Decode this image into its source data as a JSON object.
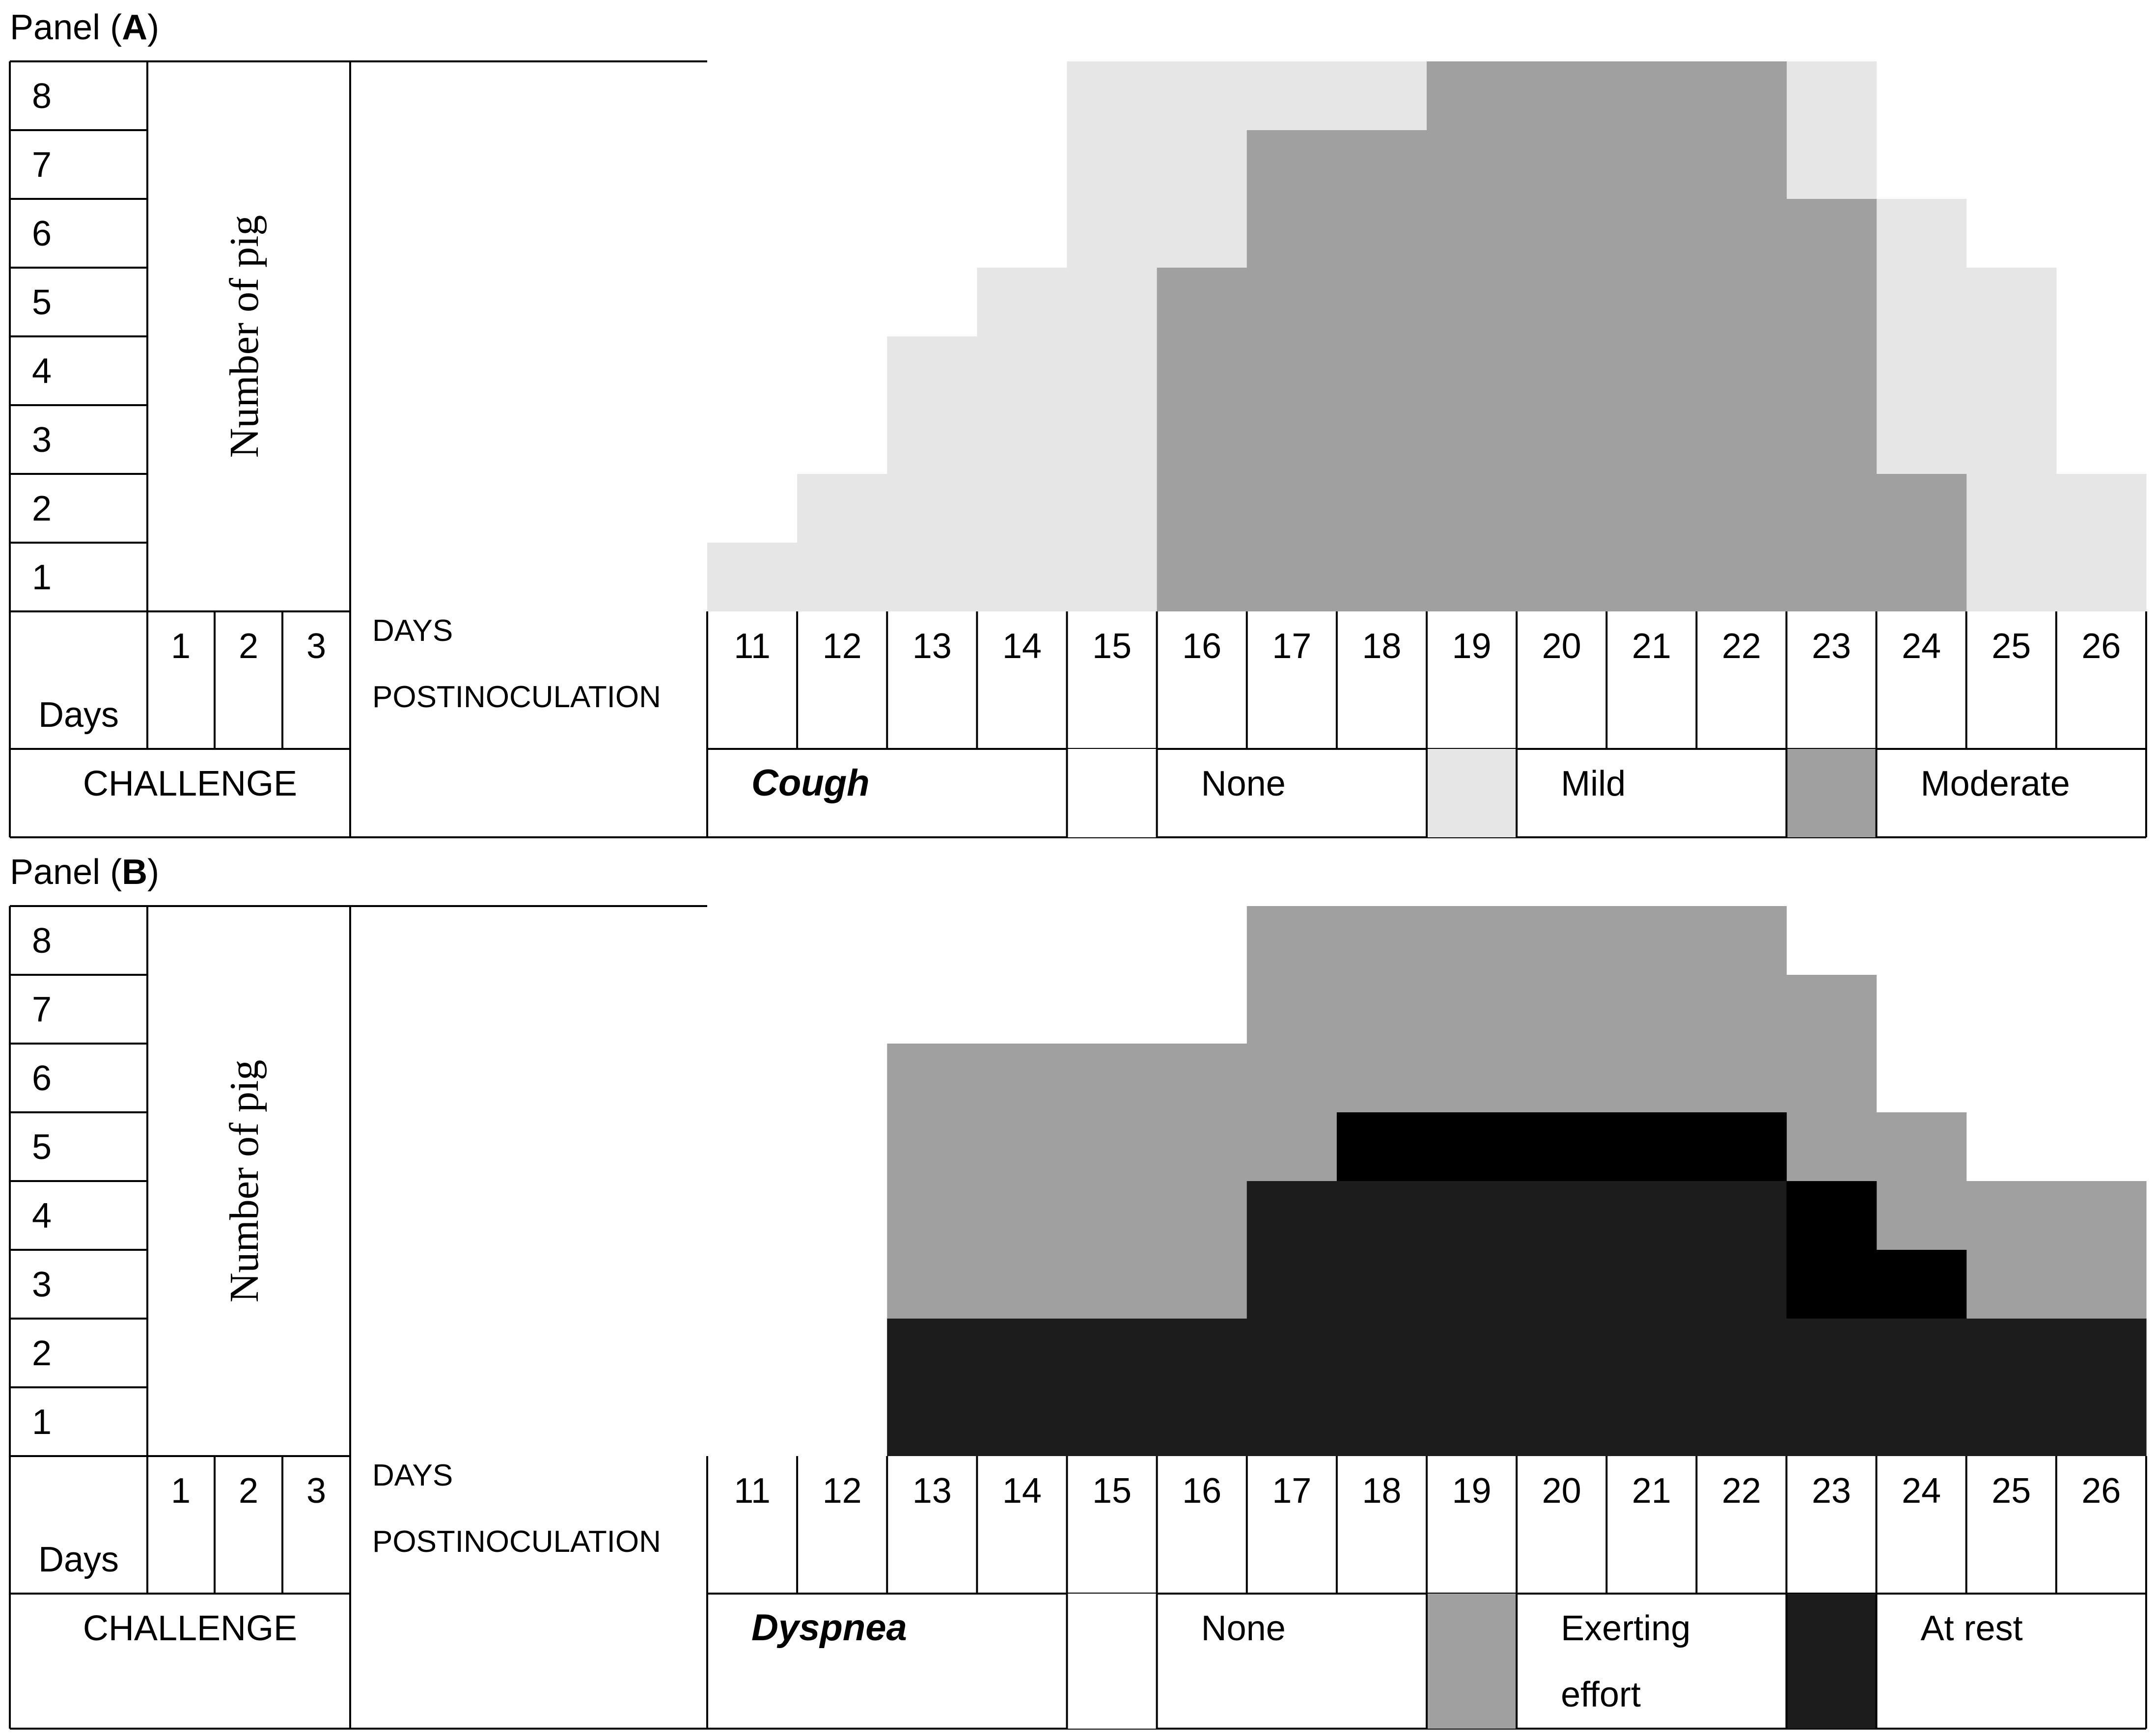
{
  "colors": {
    "none": "#ffffff",
    "mild": "#e6e6e6",
    "moderate": "#a0a0a0",
    "exerting_effort": "#a0a0a0",
    "at_rest": "#1c1c1c",
    "at_rest_overlay": "#000000"
  },
  "chart_data": [
    {
      "type": "heatmap",
      "panel_prefix": "Panel (",
      "panel_letter": "A",
      "panel_suffix": ")",
      "ylabel": "Number of pig",
      "y_ticks": [
        "8",
        "7",
        "6",
        "5",
        "4",
        "3",
        "2",
        "1"
      ],
      "days_label": "Days",
      "challenge_label": "CHALLENGE",
      "challenge_days": [
        "1",
        "2",
        "3"
      ],
      "xlabel_line1": "DAYS",
      "xlabel_line2": "POSTINOCULATION",
      "x_days": [
        "11",
        "12",
        "13",
        "14",
        "15",
        "16",
        "17",
        "18",
        "19",
        "20",
        "21",
        "22",
        "23",
        "24",
        "25",
        "26"
      ],
      "symptom": "Cough",
      "legend": [
        {
          "key": "none",
          "label": [
            "None"
          ]
        },
        {
          "key": "mild",
          "label": [
            "Mild"
          ]
        },
        {
          "key": "moderate",
          "label": [
            "Moderate"
          ]
        }
      ],
      "series": [
        {
          "key": "mild",
          "values": [
            1,
            2,
            4,
            5,
            8,
            8,
            8,
            8,
            8,
            8,
            8,
            8,
            8,
            6,
            5,
            2
          ]
        },
        {
          "key": "moderate",
          "values": [
            0,
            0,
            0,
            0,
            0,
            5,
            7,
            7,
            8,
            8,
            8,
            8,
            6,
            2,
            0,
            0
          ]
        }
      ]
    },
    {
      "type": "heatmap",
      "panel_prefix": "Panel (",
      "panel_letter": "B",
      "panel_suffix": ")",
      "ylabel": "Number of pig",
      "y_ticks": [
        "8",
        "7",
        "6",
        "5",
        "4",
        "3",
        "2",
        "1"
      ],
      "days_label": "Days",
      "challenge_label": "CHALLENGE",
      "challenge_days": [
        "1",
        "2",
        "3"
      ],
      "xlabel_line1": "DAYS",
      "xlabel_line2": "POSTINOCULATION",
      "x_days": [
        "11",
        "12",
        "13",
        "14",
        "15",
        "16",
        "17",
        "18",
        "19",
        "20",
        "21",
        "22",
        "23",
        "24",
        "25",
        "26"
      ],
      "symptom": "Dyspnea",
      "legend": [
        {
          "key": "none",
          "label": [
            "None"
          ]
        },
        {
          "key": "exerting_effort",
          "label": [
            "Exerting",
            "effort"
          ]
        },
        {
          "key": "at_rest",
          "label": [
            "At rest"
          ]
        }
      ],
      "series": [
        {
          "key": "exerting_effort",
          "values": [
            0,
            0,
            6,
            6,
            6,
            6,
            8,
            8,
            8,
            8,
            8,
            8,
            7,
            5,
            4,
            4
          ]
        },
        {
          "key": "at_rest",
          "values": [
            0,
            0,
            2,
            2,
            2,
            2,
            4,
            4,
            4,
            4,
            4,
            4,
            4,
            2,
            2,
            2
          ]
        },
        {
          "key": "at_rest_overlay",
          "values": [
            0,
            0,
            0,
            0,
            0,
            0,
            0,
            5,
            5,
            5,
            5,
            5,
            4,
            3,
            0,
            0
          ],
          "from": [
            0,
            0,
            0,
            0,
            0,
            0,
            0,
            4,
            4,
            4,
            4,
            4,
            2,
            2,
            0,
            0
          ]
        }
      ]
    }
  ]
}
